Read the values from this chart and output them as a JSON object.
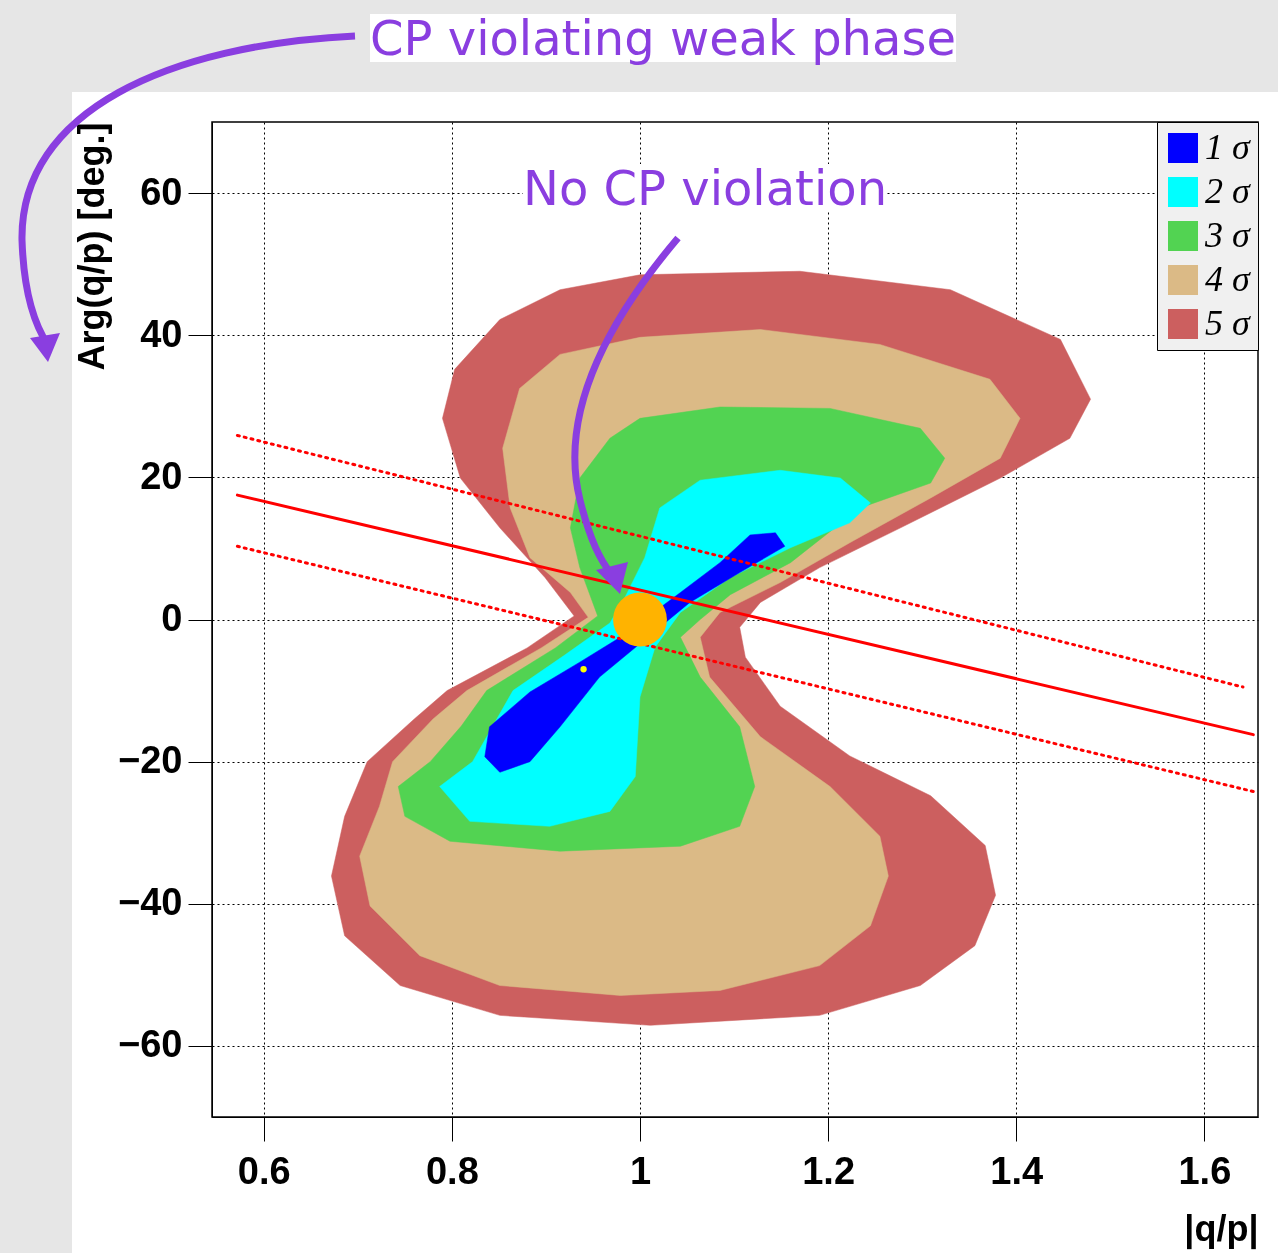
{
  "chart_data": {
    "type": "area",
    "xlabel": "|q/p|",
    "ylabel": "Arg(q/p) [deg.]",
    "annotations": [
      "CP violating weak phase",
      "No CP violation"
    ],
    "xlim": [
      0.545,
      1.657
    ],
    "ylim": [
      -70,
      70
    ],
    "xticks": [
      0.6,
      0.8,
      1,
      1.2,
      1.4,
      1.6
    ],
    "yticks": [
      -60,
      -40,
      -20,
      0,
      20,
      40,
      60
    ],
    "grid": true,
    "legend": "top right",
    "series": [
      {
        "name": "1 σ",
        "color": "#0000ff",
        "x": [
          1.117,
          1.144,
          1.154,
          1.106,
          1.053,
          0.957,
          0.915,
          0.883,
          0.851,
          0.835,
          0.84,
          0.883,
          0.936,
          0.979,
          1.043,
          1.085
        ],
        "values": [
          11.9,
          12.2,
          10.3,
          6.6,
          2.4,
          -8.1,
          -15.1,
          -20.0,
          -21.5,
          -19.3,
          -15.1,
          -10.2,
          -6.0,
          -2.5,
          3.8,
          8.0
        ]
      },
      {
        "name": "2 σ",
        "color": "#00ffff",
        "x": [
          1.064,
          1.149,
          1.213,
          1.245,
          1.223,
          1.16,
          1.096,
          1.043,
          1.016,
          1.0,
          0.995,
          0.968,
          0.904,
          0.819,
          0.787,
          0.822,
          0.865,
          0.92,
          0.968,
          0.984,
          1.005,
          1.021
        ],
        "values": [
          19.6,
          21.0,
          19.9,
          16.4,
          13.6,
          10.1,
          5.9,
          1.0,
          -3.9,
          -10.9,
          -22.1,
          -27.0,
          -29.1,
          -28.4,
          -23.5,
          -20.0,
          -10.0,
          -5.0,
          -0.5,
          3.1,
          8.7,
          15.7
        ]
      },
      {
        "name": "3 σ",
        "color": "#52d352",
        "x": [
          1.0,
          1.085,
          1.202,
          1.298,
          1.324,
          1.309,
          1.234,
          1.16,
          1.096,
          1.064,
          1.043,
          1.064,
          1.106,
          1.122,
          1.106,
          1.043,
          0.915,
          0.798,
          0.75,
          0.743,
          0.777,
          0.81,
          0.837,
          0.91,
          0.955,
          0.936,
          0.926,
          0.936,
          0.968
        ],
        "values": [
          28.3,
          29.9,
          29.7,
          26.9,
          22.7,
          19.2,
          15.7,
          8.0,
          3.5,
          0.0,
          -2.5,
          -8.1,
          -15.1,
          -23.5,
          -29.1,
          -31.9,
          -32.6,
          -31.2,
          -27.7,
          -23.5,
          -20.0,
          -15.0,
          -10.0,
          -4.0,
          0.5,
          7.3,
          12.9,
          19.9,
          25.5
        ]
      },
      {
        "name": "4 σ",
        "color": "#dbba86",
        "x": [
          1.0,
          1.128,
          1.255,
          1.372,
          1.404,
          1.383,
          1.309,
          1.223,
          1.149,
          1.085,
          1.064,
          1.074,
          1.128,
          1.202,
          1.255,
          1.264,
          1.245,
          1.191,
          1.085,
          0.979,
          0.851,
          0.766,
          0.713,
          0.702,
          0.723,
          0.737,
          0.78,
          0.816,
          0.895,
          0.945,
          0.926,
          0.883,
          0.862,
          0.854,
          0.872,
          0.915
        ],
        "values": [
          39.7,
          40.8,
          38.7,
          33.8,
          28.3,
          22.7,
          17.1,
          10.8,
          5.2,
          1.0,
          -2.5,
          -8.1,
          -16.5,
          -23.5,
          -30.5,
          -36.1,
          -43.1,
          -48.7,
          -52.2,
          -52.9,
          -51.5,
          -47.3,
          -40.3,
          -33.3,
          -26.3,
          -20.0,
          -14.0,
          -10.0,
          -4.0,
          0.3,
          3.8,
          8.7,
          15.7,
          24.1,
          32.5,
          37.3
        ]
      },
      {
        "name": "5 σ",
        "color": "#cc5f5f",
        "x": [
          1.0,
          1.17,
          1.33,
          1.447,
          1.479,
          1.457,
          1.383,
          1.277,
          1.191,
          1.128,
          1.106,
          1.112,
          1.149,
          1.223,
          1.309,
          1.367,
          1.378,
          1.356,
          1.298,
          1.191,
          1.011,
          0.851,
          0.745,
          0.686,
          0.672,
          0.686,
          0.71,
          0.76,
          0.795,
          0.88,
          0.93,
          0.899,
          0.851,
          0.809,
          0.79,
          0.803,
          0.851,
          0.915
        ],
        "values": [
          48.5,
          49.0,
          46.4,
          39.4,
          31.0,
          25.5,
          19.9,
          12.9,
          7.3,
          2.4,
          -1.1,
          -5.3,
          -12.2,
          -19.2,
          -24.8,
          -31.8,
          -38.8,
          -45.9,
          -51.5,
          -55.7,
          -57.1,
          -55.7,
          -51.5,
          -44.5,
          -36.1,
          -27.7,
          -20.0,
          -14.0,
          -10.0,
          -4.0,
          0.5,
          5.9,
          12.9,
          19.9,
          28.3,
          35.2,
          42.2,
          46.4
        ]
      },
      {
        "type": "line",
        "color": "#ff0000",
        "line_style": "solid",
        "x": [
          0.572,
          1.652
        ],
        "values": [
          17.5,
          -16.2
        ]
      },
      {
        "type": "line",
        "color": "#ff0000",
        "line_style": "dotted",
        "x": [
          0.572,
          1.641
        ],
        "values": [
          25.9,
          -9.5
        ]
      },
      {
        "type": "line",
        "color": "#ff0000",
        "line_style": "dotted",
        "x": [
          0.572,
          1.652
        ],
        "values": [
          10.3,
          -24.2
        ]
      },
      {
        "type": "bubble",
        "color": "#ffb300",
        "marker": "circle",
        "x": [
          1.0
        ],
        "values": [
          0
        ],
        "sizes": [
          1
        ]
      },
      {
        "type": "scatter",
        "color": "#ffff00",
        "marker": "circle",
        "x": [
          0.94
        ],
        "values": [
          -7
        ]
      }
    ]
  }
}
